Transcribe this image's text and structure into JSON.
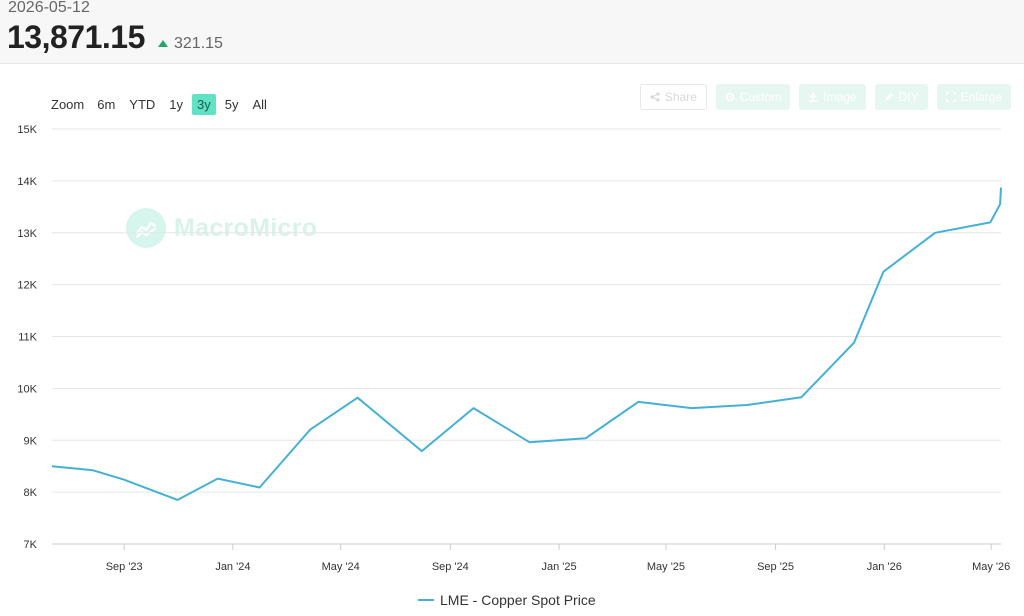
{
  "header": {
    "date": "2026-05-12",
    "price": "13,871.15",
    "change": "321.15",
    "change_color": "#2ba36b"
  },
  "zoom": {
    "label": "Zoom",
    "options": [
      "6m",
      "YTD",
      "1y",
      "3y",
      "5y",
      "All"
    ],
    "active": "3y"
  },
  "toolbar": {
    "share_label": "Share",
    "custom_label": "Custom",
    "image_label": "Image",
    "diy_label": "DIY",
    "enlarge_label": "Enlarge"
  },
  "watermark": {
    "text": "MacroMicro"
  },
  "chart_data": {
    "type": "line",
    "title": "",
    "xlabel": "",
    "ylabel": "",
    "ylim": [
      7000,
      15000
    ],
    "yticks": [
      7000,
      8000,
      9000,
      10000,
      11000,
      12000,
      13000,
      14000,
      15000
    ],
    "ytick_labels": [
      "7K",
      "8K",
      "9K",
      "10K",
      "11K",
      "12K",
      "13K",
      "14K",
      "15K"
    ],
    "xlim": [
      "2023-06-12",
      "2026-05-12"
    ],
    "xticks": [
      "2023-09-01",
      "2024-01-01",
      "2024-05-01",
      "2024-09-01",
      "2025-01-01",
      "2025-05-01",
      "2025-09-01",
      "2026-01-01",
      "2026-05-01"
    ],
    "xtick_labels": [
      "Sep '23",
      "Jan '24",
      "May '24",
      "Sep '24",
      "Jan '25",
      "May '25",
      "Sep '25",
      "Jan '26",
      "May '26"
    ],
    "grid": true,
    "legend_position": "bottom-center",
    "series": [
      {
        "name": "LME - Copper Spot Price",
        "color": "#45b0d6",
        "x": [
          "2023-06-12",
          "2023-07-28",
          "2023-09-01",
          "2023-10-31",
          "2023-12-15",
          "2024-01-31",
          "2024-03-28",
          "2024-05-20",
          "2024-07-31",
          "2024-09-27",
          "2024-11-29",
          "2025-01-31",
          "2025-03-31",
          "2025-05-30",
          "2025-07-31",
          "2025-09-30",
          "2025-11-28",
          "2025-12-31",
          "2026-02-27",
          "2026-04-30",
          "2026-05-11",
          "2026-05-12"
        ],
        "values": [
          8500,
          8420,
          8240,
          7850,
          8260,
          8090,
          9210,
          9820,
          8790,
          9620,
          8960,
          9040,
          9740,
          9620,
          9680,
          9830,
          10880,
          12250,
          13000,
          13200,
          13550,
          13871.15
        ]
      }
    ]
  }
}
